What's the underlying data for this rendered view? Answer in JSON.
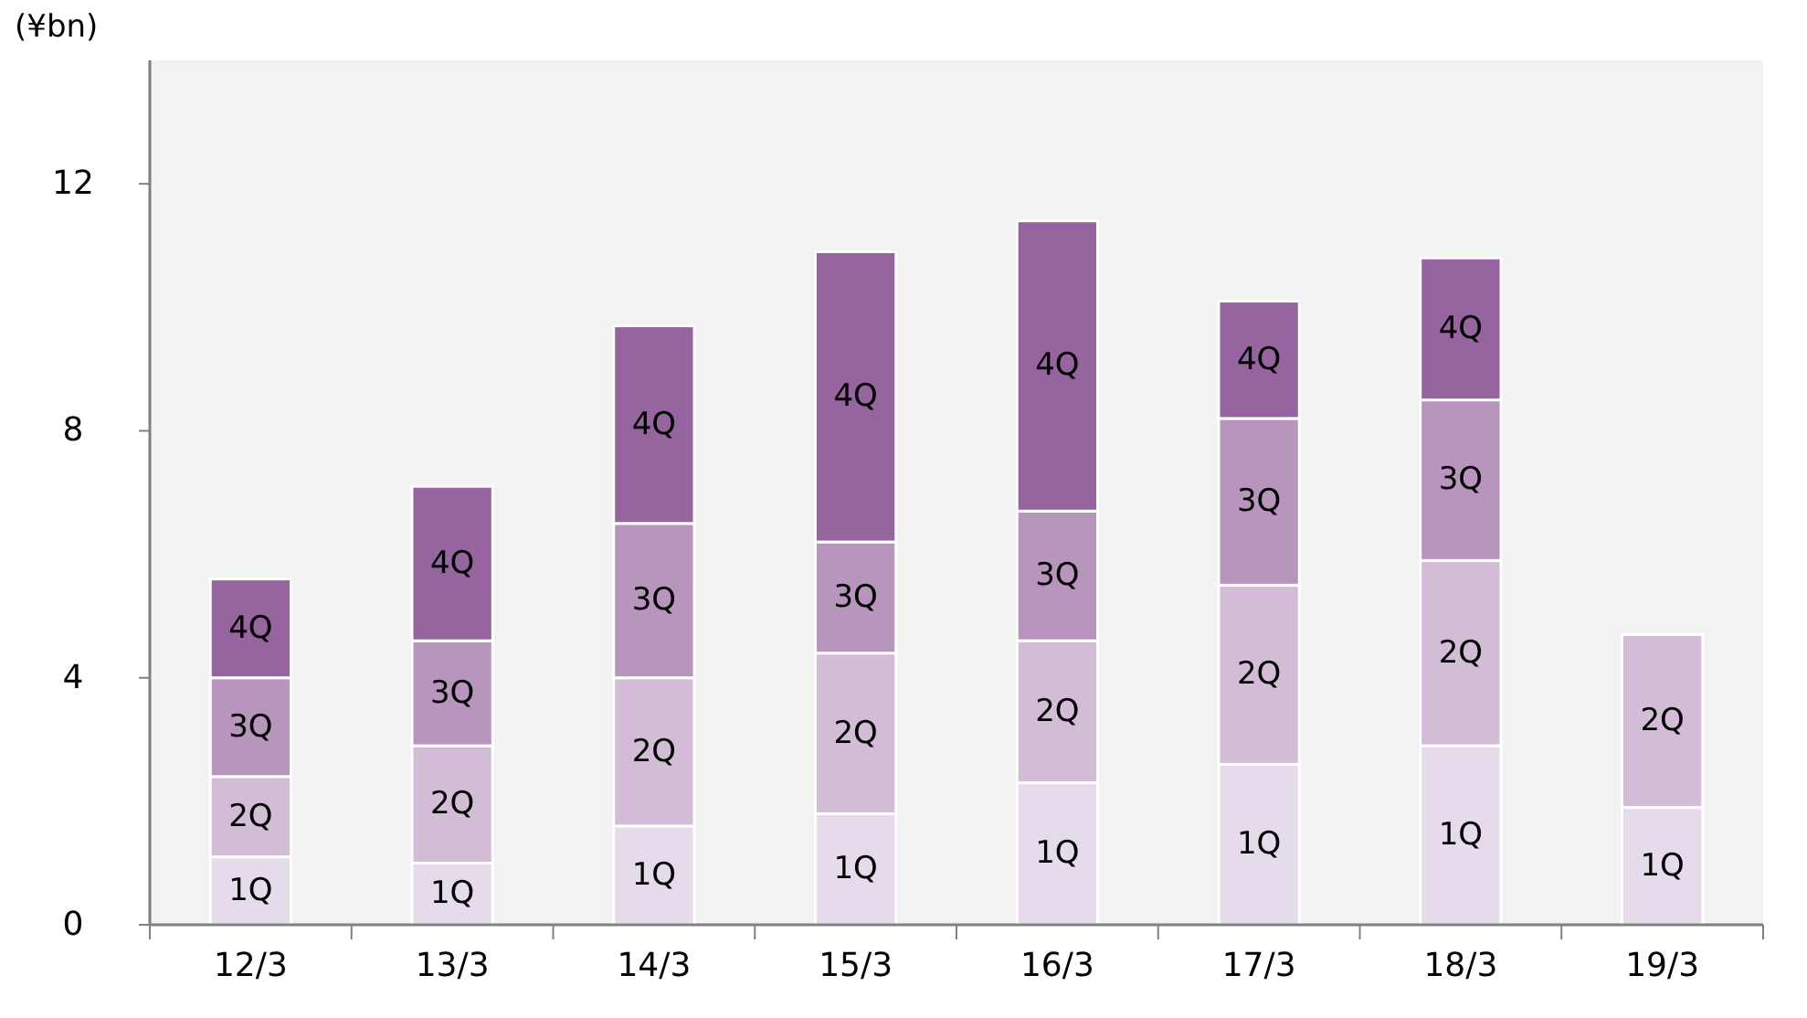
{
  "chart_data": {
    "type": "bar",
    "stacked": true,
    "ylabel": "(¥bn)",
    "categories": [
      "12/3",
      "13/3",
      "14/3",
      "15/3",
      "16/3",
      "17/3",
      "18/3",
      "19/3"
    ],
    "series": [
      {
        "name": "1Q",
        "color": "#e6dbea",
        "values": [
          1.1,
          1.0,
          1.6,
          1.8,
          2.3,
          2.6,
          2.9,
          1.9
        ]
      },
      {
        "name": "2Q",
        "color": "#d2bcd6",
        "values": [
          1.3,
          1.9,
          2.4,
          2.6,
          2.3,
          2.9,
          3.0,
          2.8
        ]
      },
      {
        "name": "3Q",
        "color": "#b895bd",
        "values": [
          1.6,
          1.7,
          2.5,
          1.8,
          2.1,
          2.7,
          2.6,
          null
        ]
      },
      {
        "name": "4Q",
        "color": "#96649e",
        "values": [
          1.6,
          2.5,
          3.2,
          4.7,
          4.7,
          1.9,
          2.3,
          null
        ]
      }
    ],
    "ylim": [
      0,
      14
    ],
    "yticks": [
      0,
      4,
      8,
      12
    ],
    "grid": false
  }
}
